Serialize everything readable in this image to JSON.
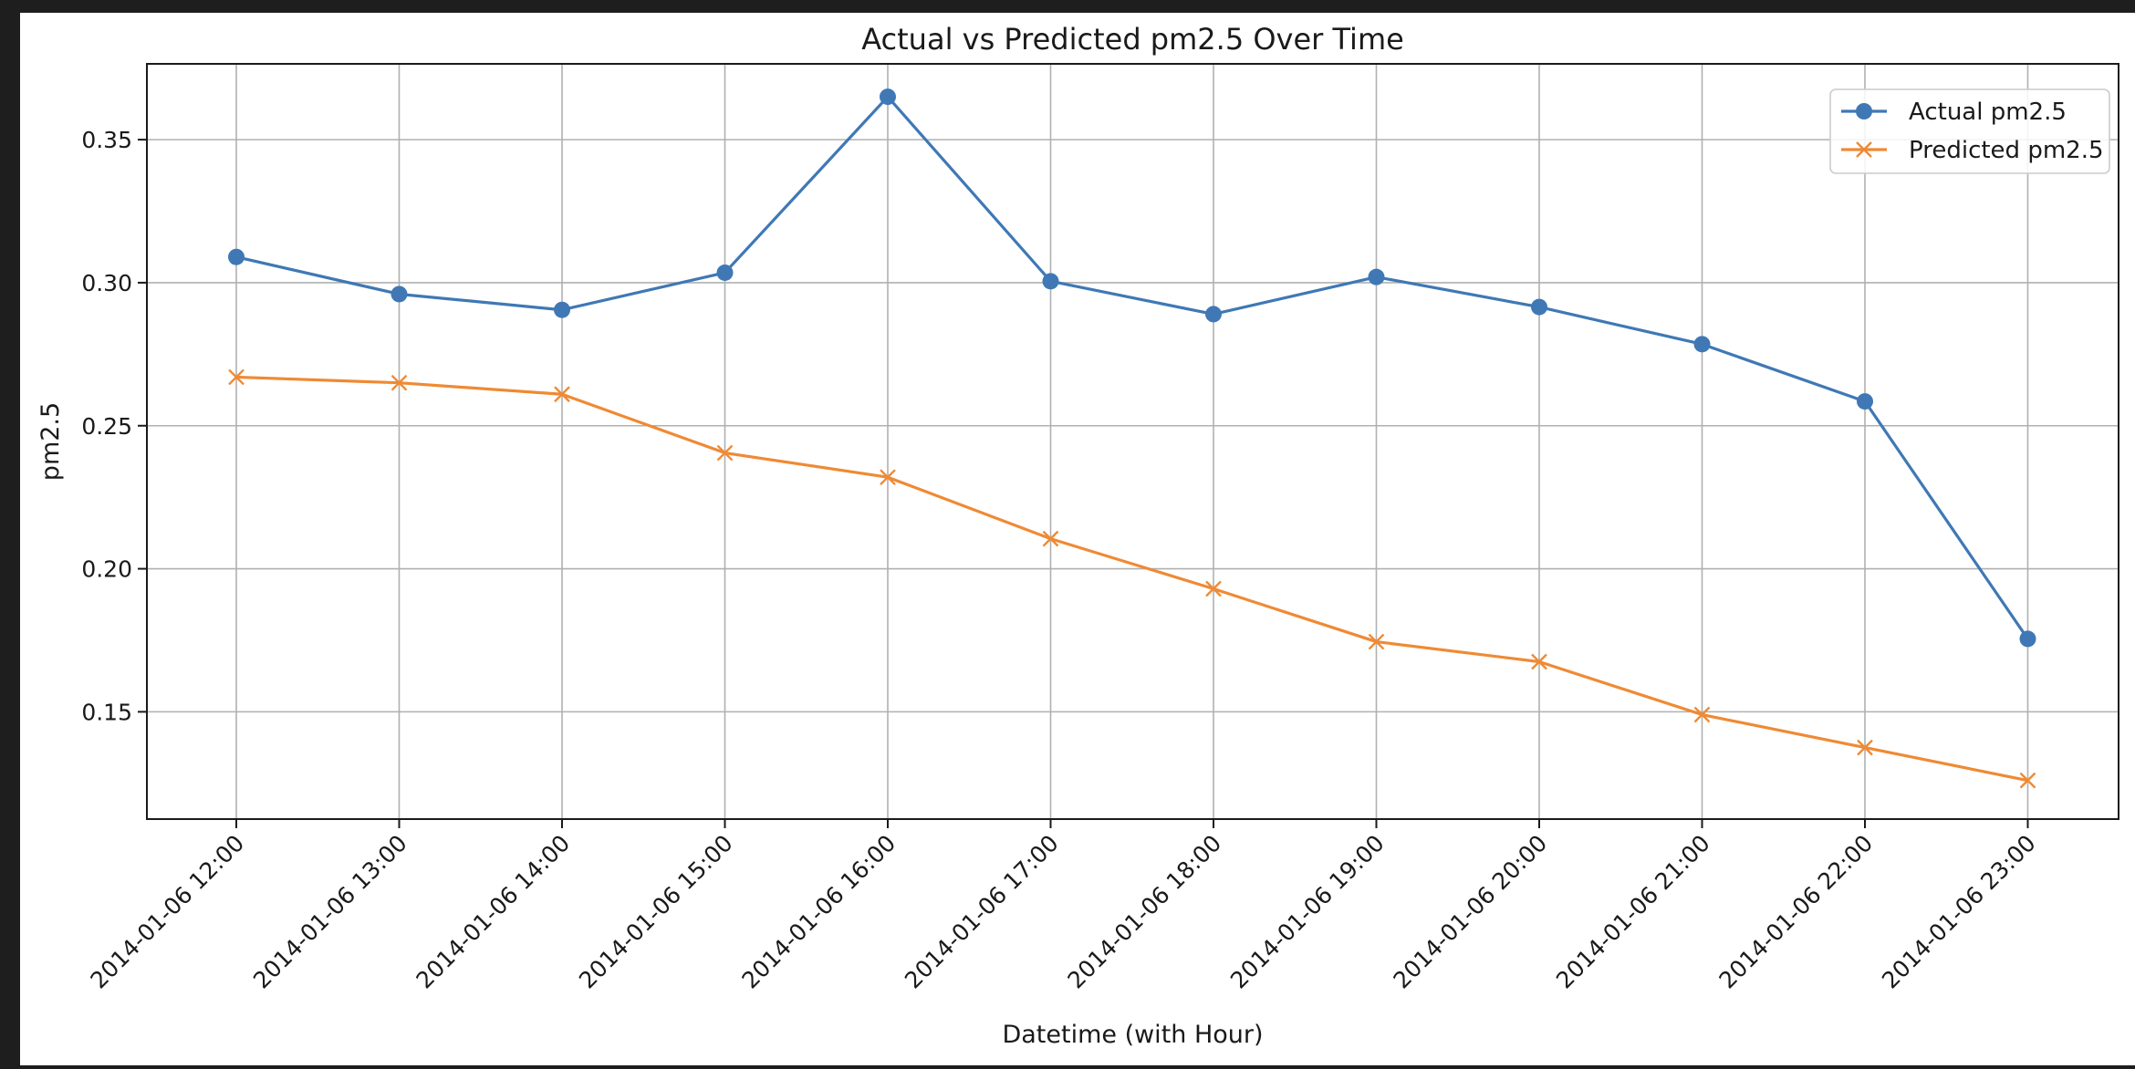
{
  "chart_data": {
    "type": "line",
    "title": "Actual vs Predicted pm2.5 Over Time",
    "xlabel": "Datetime (with Hour)",
    "ylabel": "pm2.5",
    "categories": [
      "2014-01-06 12:00",
      "2014-01-06 13:00",
      "2014-01-06 14:00",
      "2014-01-06 15:00",
      "2014-01-06 16:00",
      "2014-01-06 17:00",
      "2014-01-06 18:00",
      "2014-01-06 19:00",
      "2014-01-06 20:00",
      "2014-01-06 21:00",
      "2014-01-06 22:00",
      "2014-01-06 23:00"
    ],
    "series": [
      {
        "name": "Actual pm2.5",
        "color": "#3f78b5",
        "marker": "circle",
        "values": [
          0.309,
          0.296,
          0.2905,
          0.3035,
          0.365,
          0.3005,
          0.289,
          0.302,
          0.2915,
          0.2785,
          0.2585,
          0.1755
        ]
      },
      {
        "name": "Predicted pm2.5",
        "color": "#ef8a34",
        "marker": "x",
        "values": [
          0.267,
          0.265,
          0.261,
          0.2405,
          0.232,
          0.2105,
          0.193,
          0.1745,
          0.1675,
          0.149,
          0.1375,
          0.126
        ]
      }
    ],
    "ylim": [
      0.1125,
      0.3765
    ],
    "yticks": [
      "0.15",
      "0.20",
      "0.25",
      "0.30",
      "0.35"
    ],
    "grid": true,
    "legend_position": "top-right"
  }
}
